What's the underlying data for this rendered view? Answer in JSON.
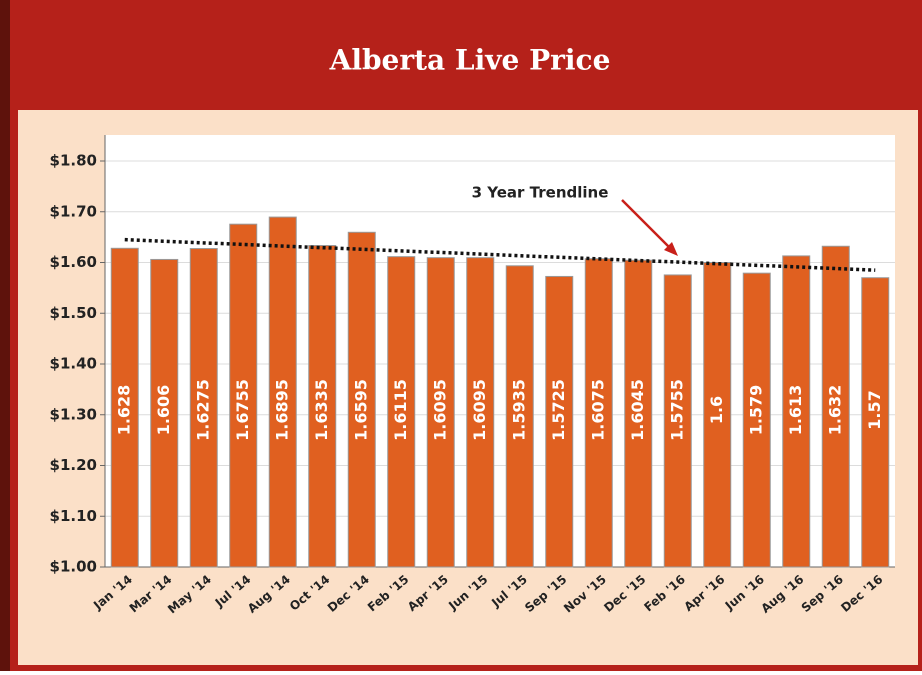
{
  "chart_data": {
    "type": "bar",
    "title": "Alberta Live Price",
    "categories": [
      "Jan '14",
      "Mar '14",
      "May '14",
      "Jul '14",
      "Aug '14",
      "Oct '14",
      "Dec '14",
      "Feb '15",
      "Apr '15",
      "Jun '15",
      "Jul '15",
      "Sep '15",
      "Nov '15",
      "Dec '15",
      "Feb '16",
      "Apr '16",
      "Jun '16",
      "Aug '16",
      "Sep '16",
      "Dec '16"
    ],
    "values": [
      1.628,
      1.606,
      1.6275,
      1.6755,
      1.6895,
      1.6335,
      1.6595,
      1.6115,
      1.6095,
      1.6095,
      1.5935,
      1.5725,
      1.6075,
      1.6045,
      1.5755,
      1.6,
      1.579,
      1.613,
      1.632,
      1.57
    ],
    "color": "#e06020",
    "ylim": [
      1.0,
      1.8
    ],
    "yticks": [
      {
        "value": 1.0,
        "label": "$1.00"
      },
      {
        "value": 1.1,
        "label": "$1.10"
      },
      {
        "value": 1.2,
        "label": "$1.20"
      },
      {
        "value": 1.3,
        "label": "$1.30"
      },
      {
        "value": 1.4,
        "label": "$1.40"
      },
      {
        "value": 1.5,
        "label": "$1.50"
      },
      {
        "value": 1.6,
        "label": "$1.60"
      },
      {
        "value": 1.7,
        "label": "$1.70"
      },
      {
        "value": 1.8,
        "label": "$1.80"
      }
    ],
    "grid": true,
    "annotation": "3 Year Trendline",
    "trendline": {
      "start": 1.645,
      "end": 1.585
    }
  }
}
